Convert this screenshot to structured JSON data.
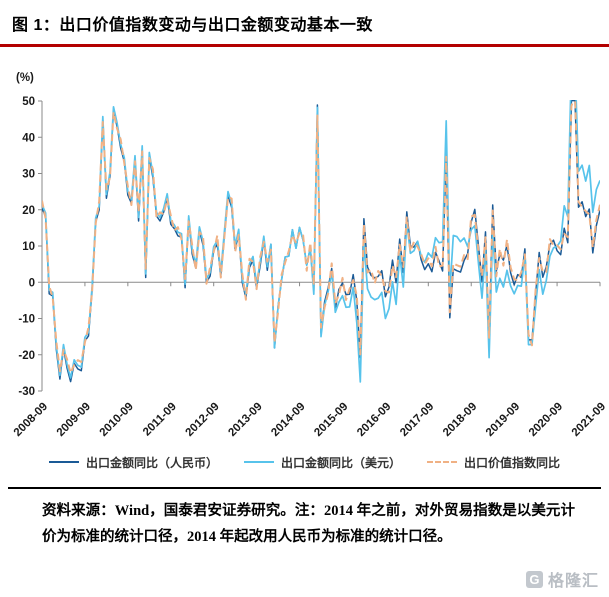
{
  "title": "图 1：出口价值指数变动与出口金额变动基本一致",
  "colors": {
    "title_rule": "#b30000",
    "axis": "#8a8a8a",
    "footer_rule": "#000000",
    "watermark": "#b9bec4"
  },
  "chart_data": {
    "type": "line",
    "title": "出口价值指数变动与出口金额变动基本一致",
    "ylabel": "(%)",
    "ylim": [
      -30,
      50
    ],
    "yticks": [
      50,
      40,
      30,
      20,
      10,
      0,
      -10,
      -20,
      -30
    ],
    "grid": false,
    "legend_position": "bottom",
    "x_start": "2008-09",
    "x_end": "2021-09",
    "x_frequency": "monthly",
    "x_tick_every": 12,
    "x_tick_labels": [
      "2008-09",
      "2009-09",
      "2010-09",
      "2011-09",
      "2012-09",
      "2013-09",
      "2014-09",
      "2015-09",
      "2016-09",
      "2017-09",
      "2018-09",
      "2019-09",
      "2020-09",
      "2021-09"
    ],
    "series": [
      {
        "name": "出口金额同比（人民币）",
        "color": "#1a5a96",
        "dash": "solid",
        "width": 1.5,
        "values": [
          20.4,
          18.1,
          -3.2,
          -3.8,
          -18.5,
          -26.7,
          -18.2,
          -23.6,
          -27.4,
          -22.4,
          -23.9,
          -24.4,
          -16.2,
          -14.8,
          -2.2,
          16.7,
          20.0,
          44.7,
          23.2,
          29.4,
          47.4,
          42.9,
          37.0,
          33.3,
          24.1,
          21.8,
          33.9,
          16.9,
          36.6,
          1.3,
          34.8,
          28.8,
          18.3,
          16.9,
          19.3,
          23.4,
          16.0,
          14.8,
          12.8,
          12.4,
          -1.5,
          17.3,
          7.8,
          3.9,
          14.3,
          10.3,
          0.0,
          1.7,
          8.8,
          10.5,
          1.8,
          13.0,
          24.0,
          20.7,
          9.0,
          13.6,
          -0.1,
          -4.3,
          4.1,
          6.1,
          -1.4,
          4.6,
          11.7,
          3.3,
          10.5,
          -18.1,
          -6.6,
          0.8,
          7.0,
          7.2,
          14.5,
          9.4,
          15.1,
          11.6,
          4.7,
          9.5,
          -2.3,
          48.9,
          -14.0,
          -5.4,
          -1.5,
          3.8,
          -7.3,
          -2.0,
          -0.2,
          -3.4,
          -3.3,
          2.1,
          -5.2,
          -20.8,
          17.5,
          4.2,
          1.9,
          1.2,
          1.6,
          3.2,
          -4.0,
          -1.3,
          6.1,
          -0.1,
          11.9,
          2.7,
          19.4,
          10.0,
          9.7,
          11.3,
          6.2,
          3.5,
          5.1,
          2.9,
          8.3,
          5.9,
          3.1,
          36.2,
          -9.8,
          3.7,
          3.2,
          2.8,
          6.0,
          7.9,
          16.6,
          20.1,
          10.2,
          0.2,
          13.9,
          -16.8,
          21.3,
          3.1,
          7.7,
          6.1,
          10.3,
          2.6,
          -0.7,
          2.1,
          1.3,
          9.2,
          -15.9,
          -15.9,
          -3.5,
          8.2,
          1.4,
          4.3,
          10.4,
          11.6,
          8.7,
          7.6,
          14.9,
          10.9,
          50.1,
          50.1,
          20.7,
          22.2,
          18.1,
          20.2,
          8.1,
          15.7,
          19.9
        ]
      },
      {
        "name": "出口金额同比（美元）",
        "color": "#57c3eb",
        "dash": "solid",
        "width": 1.7,
        "values": [
          21.4,
          19.1,
          -2.2,
          -2.8,
          -17.5,
          -25.7,
          -17.2,
          -22.6,
          -26.4,
          -21.4,
          -22.9,
          -23.4,
          -15.2,
          -13.8,
          -1.2,
          17.7,
          21.0,
          45.7,
          24.2,
          30.4,
          48.4,
          43.9,
          38.0,
          34.3,
          25.1,
          22.8,
          34.9,
          17.9,
          37.6,
          2.3,
          35.8,
          29.8,
          19.3,
          17.9,
          20.3,
          24.4,
          17.0,
          15.8,
          13.8,
          13.4,
          -0.5,
          18.3,
          8.8,
          4.9,
          15.3,
          11.3,
          1.0,
          2.7,
          9.8,
          11.5,
          2.8,
          14.0,
          25.0,
          21.7,
          10.0,
          14.6,
          0.9,
          -3.3,
          5.1,
          7.1,
          -0.4,
          5.6,
          12.7,
          4.3,
          10.5,
          -18.1,
          -6.6,
          0.8,
          7.0,
          7.2,
          14.5,
          9.4,
          15.1,
          11.6,
          4.7,
          9.5,
          -3.3,
          48.2,
          -15.0,
          -6.4,
          -2.5,
          2.8,
          -8.3,
          -5.5,
          -3.7,
          -6.9,
          -6.8,
          -1.4,
          -11.2,
          -27.5,
          11.5,
          -1.8,
          -4.1,
          -4.8,
          -4.4,
          -2.8,
          -10.0,
          -7.3,
          0.1,
          -6.1,
          7.9,
          -1.3,
          16.4,
          8.0,
          8.7,
          11.3,
          7.2,
          5.5,
          8.1,
          6.9,
          12.3,
          10.9,
          11.1,
          44.5,
          -2.7,
          12.9,
          12.6,
          11.2,
          12.2,
          9.8,
          14.5,
          15.6,
          5.4,
          -4.4,
          9.1,
          -20.8,
          14.2,
          -2.7,
          1.1,
          -1.3,
          3.3,
          -1.0,
          -3.2,
          -0.9,
          -1.1,
          7.6,
          -17.2,
          -17.2,
          -6.6,
          3.5,
          -3.3,
          0.5,
          7.2,
          9.5,
          9.9,
          11.4,
          21.1,
          18.1,
          60.6,
          60.6,
          30.6,
          32.3,
          27.9,
          32.2,
          19.3,
          25.6,
          28.1
        ]
      },
      {
        "name": "出口价值指数同比",
        "color": "#f0b184",
        "dash": "dashed",
        "width": 2,
        "values": [
          22.5,
          17.6,
          -1.0,
          -4.2,
          -16.3,
          -24.5,
          -18.6,
          -21.2,
          -25.0,
          -22.8,
          -21.5,
          -22.0,
          -16.6,
          -12.4,
          -2.6,
          16.2,
          22.4,
          44.2,
          25.6,
          28.9,
          46.9,
          42.4,
          39.4,
          32.8,
          26.5,
          21.3,
          33.4,
          19.3,
          36.1,
          3.7,
          34.3,
          31.2,
          17.8,
          19.3,
          18.8,
          22.9,
          18.4,
          14.3,
          15.2,
          11.9,
          0.9,
          16.8,
          10.2,
          3.4,
          13.8,
          12.7,
          -0.4,
          4.1,
          8.3,
          12.9,
          1.3,
          12.5,
          23.5,
          23.1,
          8.5,
          13.1,
          2.3,
          -4.8,
          6.5,
          5.6,
          -1.9,
          7.0,
          11.2,
          5.7,
          9.0,
          -16.6,
          -8.1,
          2.2,
          5.5,
          8.6,
          13.0,
          10.8,
          13.6,
          13.0,
          3.2,
          10.9,
          -0.8,
          46.0,
          -12.5,
          -6.9,
          -3.0,
          5.2,
          -5.8,
          -3.5,
          1.2,
          -4.9,
          -1.8,
          0.6,
          -3.7,
          -19.9,
          15.9,
          2.7,
          3.4,
          -0.3,
          3.1,
          1.7,
          -2.5,
          -2.8,
          4.6,
          1.4,
          10.4,
          4.2,
          17.9,
          8.5,
          11.2,
          9.8,
          7.7,
          5.0,
          6.6,
          4.4,
          9.8,
          4.4,
          4.6,
          34.6,
          -8.3,
          5.2,
          4.7,
          4.3,
          7.5,
          6.4,
          18.1,
          18.6,
          8.7,
          1.7,
          12.4,
          -15.3,
          19.8,
          1.6,
          9.2,
          4.6,
          11.8,
          4.1,
          0.8,
          0.6,
          2.8,
          7.7,
          -14.4,
          -17.4,
          -2.0,
          6.7,
          2.9,
          2.8,
          11.9,
          10.1,
          10.2,
          9.1,
          13.4,
          12.4,
          48.6,
          51.6,
          22.2,
          20.7,
          19.6,
          18.7,
          9.6,
          17.2,
          21.4
        ]
      }
    ]
  },
  "footnote": "资料来源：Wind，国泰君安证券研究。注：2014 年之前，对外贸易指数是以美元计价为标准的统计口径，2014 年起改用人民币为标准的统计口径。",
  "watermark": {
    "logo_letter": "G",
    "brand": "格隆汇"
  }
}
